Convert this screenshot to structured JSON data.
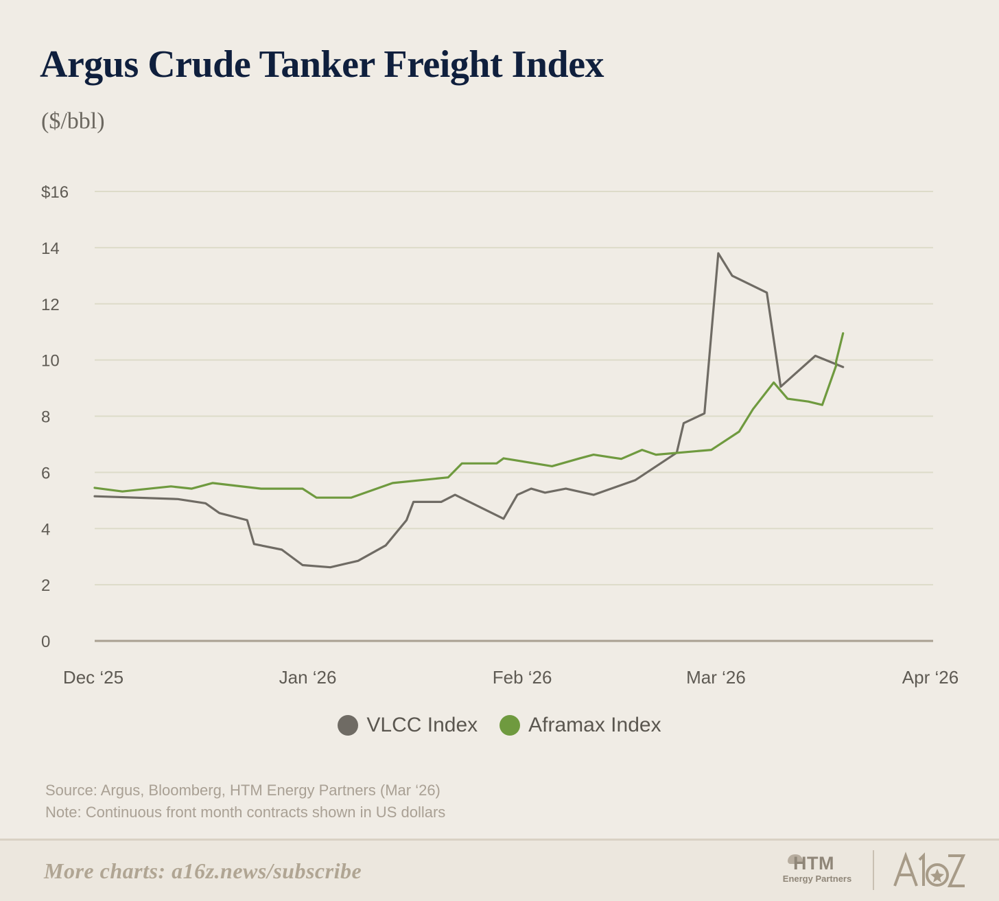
{
  "header": {
    "title": "Argus Crude Tanker Freight Index",
    "subtitle": "($/bbl)"
  },
  "chart_data": {
    "type": "line",
    "title": "Argus Crude Tanker Freight Index",
    "subtitle": "($/bbl)",
    "xlabel": "",
    "ylabel": "",
    "x_range": [
      "2025-12-01",
      "2026-04-01"
    ],
    "x_ticks": [
      {
        "date": "2025-12-01",
        "label": "Dec ‘25"
      },
      {
        "date": "2026-01-01",
        "label": "Jan ‘26"
      },
      {
        "date": "2026-02-01",
        "label": "Feb ‘26"
      },
      {
        "date": "2026-03-01",
        "label": "Mar ‘26"
      },
      {
        "date": "2026-04-01",
        "label": "Apr ‘26"
      }
    ],
    "ylim": [
      0,
      16
    ],
    "y_ticks": [
      {
        "value": 0,
        "label": "0"
      },
      {
        "value": 2,
        "label": "2"
      },
      {
        "value": 4,
        "label": "4"
      },
      {
        "value": 6,
        "label": "6"
      },
      {
        "value": 8,
        "label": "8"
      },
      {
        "value": 10,
        "label": "10"
      },
      {
        "value": 12,
        "label": "12"
      },
      {
        "value": 14,
        "label": "14"
      },
      {
        "value": 16,
        "label": "$16"
      }
    ],
    "grid": true,
    "legend_position": "bottom-center",
    "series": [
      {
        "name": "VLCC Index",
        "color": "#6f6b64",
        "points": [
          [
            "2025-12-01",
            5.15
          ],
          [
            "2025-12-13",
            5.05
          ],
          [
            "2025-12-17",
            4.9
          ],
          [
            "2025-12-19",
            4.55
          ],
          [
            "2025-12-23",
            4.3
          ],
          [
            "2025-12-24",
            3.45
          ],
          [
            "2025-12-28",
            3.25
          ],
          [
            "2025-12-31",
            2.7
          ],
          [
            "2026-01-04",
            2.62
          ],
          [
            "2026-01-08",
            2.85
          ],
          [
            "2026-01-12",
            3.4
          ],
          [
            "2026-01-15",
            4.3
          ],
          [
            "2026-01-16",
            4.95
          ],
          [
            "2026-01-20",
            4.95
          ],
          [
            "2026-01-22",
            5.2
          ],
          [
            "2026-01-29",
            4.35
          ],
          [
            "2026-01-31",
            5.2
          ],
          [
            "2026-02-02",
            5.42
          ],
          [
            "2026-02-04",
            5.28
          ],
          [
            "2026-02-07",
            5.42
          ],
          [
            "2026-02-11",
            5.2
          ],
          [
            "2026-02-17",
            5.72
          ],
          [
            "2026-02-23",
            6.7
          ],
          [
            "2026-02-24",
            7.75
          ],
          [
            "2026-02-27",
            8.1
          ],
          [
            "2026-03-01",
            13.8
          ],
          [
            "2026-03-03",
            13.0
          ],
          [
            "2026-03-08",
            12.4
          ],
          [
            "2026-03-10",
            9.05
          ],
          [
            "2026-03-15",
            10.15
          ],
          [
            "2026-03-19",
            9.75
          ]
        ]
      },
      {
        "name": "Aframax Index",
        "color": "#6f9a3f",
        "points": [
          [
            "2025-12-01",
            5.45
          ],
          [
            "2025-12-05",
            5.32
          ],
          [
            "2025-12-12",
            5.5
          ],
          [
            "2025-12-15",
            5.42
          ],
          [
            "2025-12-18",
            5.62
          ],
          [
            "2025-12-25",
            5.42
          ],
          [
            "2025-12-31",
            5.42
          ],
          [
            "2026-01-02",
            5.1
          ],
          [
            "2026-01-07",
            5.1
          ],
          [
            "2026-01-13",
            5.62
          ],
          [
            "2026-01-21",
            5.82
          ],
          [
            "2026-01-23",
            6.32
          ],
          [
            "2026-01-28",
            6.32
          ],
          [
            "2026-01-29",
            6.5
          ],
          [
            "2026-02-05",
            6.22
          ],
          [
            "2026-02-09",
            6.5
          ],
          [
            "2026-02-11",
            6.63
          ],
          [
            "2026-02-15",
            6.48
          ],
          [
            "2026-02-18",
            6.8
          ],
          [
            "2026-02-20",
            6.63
          ],
          [
            "2026-02-28",
            6.8
          ],
          [
            "2026-03-04",
            7.45
          ],
          [
            "2026-03-06",
            8.25
          ],
          [
            "2026-03-09",
            9.2
          ],
          [
            "2026-03-11",
            8.62
          ],
          [
            "2026-03-14",
            8.52
          ],
          [
            "2026-03-16",
            8.4
          ],
          [
            "2026-03-18",
            9.8
          ],
          [
            "2026-03-18",
            9.95
          ],
          [
            "2026-03-19",
            10.95
          ]
        ]
      }
    ]
  },
  "notes": {
    "source": "Source: Argus, Bloomberg, HTM Energy Partners (Mar ‘26)",
    "note": "Note: Continuous front month contracts shown in US dollars"
  },
  "footer": {
    "cta": "More charts: a16z.news/subscribe",
    "htm_logo_text": "HTM",
    "htm_logo_subtext": "Energy Partners",
    "a16z_logo_text": "A16Z"
  },
  "colors": {
    "background": "#f0ece5",
    "title": "#0f1f3d",
    "grid": "#dddbc9",
    "axis": "#a9a091",
    "vlcc": "#6f6b64",
    "aframax": "#6f9a3f"
  }
}
